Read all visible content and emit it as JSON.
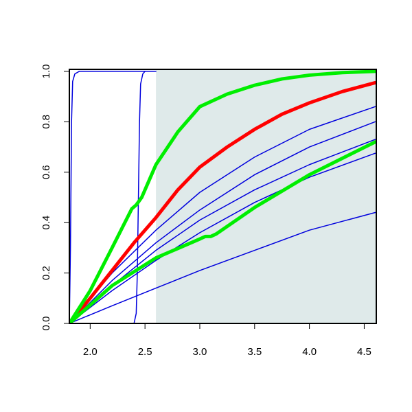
{
  "chart_data": {
    "type": "line",
    "xlim": [
      1.81,
      4.61
    ],
    "ylim": [
      0,
      1.008
    ],
    "xticks": [
      {
        "value": 2,
        "label": "2.0"
      },
      2.5,
      {
        "value": 3,
        "label": "3.0"
      },
      3.5,
      {
        "value": 4,
        "label": "4.0"
      },
      4.5
    ],
    "yticks": [
      {
        "value": 0,
        "label": "0.0"
      },
      0.2,
      0.4,
      0.6,
      0.8,
      {
        "value": 1,
        "label": "1.0"
      }
    ],
    "shaded_region": {
      "x": [
        2.6,
        4.61
      ],
      "color": "#dfeaea"
    },
    "series": [
      {
        "color": "#0000dd",
        "line_width": 1.5,
        "x": [
          1.81,
          1.82,
          1.83,
          1.84,
          1.86,
          1.9,
          2.6
        ],
        "values": [
          0,
          0.3,
          0.8,
          0.96,
          0.99,
          1.0,
          1.0
        ]
      },
      {
        "color": "#0000dd",
        "line_width": 1.5,
        "x": [
          1.81,
          2.4,
          2.42,
          2.43,
          2.44,
          2.45,
          2.46,
          2.48,
          2.5
        ],
        "values": [
          0,
          0,
          0.04,
          0.2,
          0.5,
          0.8,
          0.95,
          0.99,
          1.0
        ]
      },
      {
        "color": "#0000dd",
        "line_width": 1.5,
        "x": [
          1.81,
          2.2,
          2.6,
          3.0,
          3.5,
          4.0,
          4.6
        ],
        "values": [
          0,
          0.2,
          0.37,
          0.52,
          0.66,
          0.77,
          0.86
        ]
      },
      {
        "color": "#0000dd",
        "line_width": 1.5,
        "x": [
          1.81,
          2.2,
          2.6,
          3.0,
          3.5,
          4.0,
          4.6
        ],
        "values": [
          0,
          0.17,
          0.32,
          0.45,
          0.59,
          0.7,
          0.8
        ]
      },
      {
        "color": "#0000dd",
        "line_width": 1.5,
        "x": [
          1.81,
          2.2,
          2.6,
          3.0,
          3.5,
          4.0,
          4.6
        ],
        "values": [
          0,
          0.15,
          0.29,
          0.41,
          0.53,
          0.63,
          0.73
        ]
      },
      {
        "color": "#0000dd",
        "line_width": 1.5,
        "x": [
          1.81,
          2.2,
          2.6,
          3.0,
          3.5,
          4.0,
          4.6
        ],
        "values": [
          0,
          0.13,
          0.25,
          0.36,
          0.48,
          0.58,
          0.675
        ]
      },
      {
        "color": "#0000dd",
        "line_width": 1.5,
        "x": [
          1.81,
          2.2,
          2.6,
          3.0,
          3.5,
          4.0,
          4.6
        ],
        "values": [
          0,
          0.07,
          0.14,
          0.21,
          0.29,
          0.37,
          0.44
        ]
      },
      {
        "color": "#ff0000",
        "line_width": 5,
        "x": [
          1.81,
          2.0,
          2.2,
          2.4,
          2.6,
          2.8,
          3.0,
          3.25,
          3.5,
          3.75,
          4.0,
          4.3,
          4.6
        ],
        "values": [
          0,
          0.1,
          0.21,
          0.32,
          0.42,
          0.53,
          0.62,
          0.7,
          0.77,
          0.83,
          0.875,
          0.92,
          0.955
        ]
      },
      {
        "color": "#00ee00",
        "line_width": 5,
        "x": [
          1.81,
          2.0,
          2.2,
          2.38,
          2.42,
          2.47,
          2.6,
          2.8,
          3.0,
          3.25,
          3.5,
          3.75,
          4.0,
          4.3,
          4.6
        ],
        "values": [
          0,
          0.13,
          0.3,
          0.455,
          0.47,
          0.5,
          0.63,
          0.76,
          0.86,
          0.91,
          0.945,
          0.97,
          0.985,
          0.995,
          1.0
        ]
      },
      {
        "color": "#00ee00",
        "line_width": 5,
        "x": [
          1.81,
          2.2,
          2.6,
          3.0,
          3.05,
          3.1,
          3.15,
          3.5,
          4.0,
          4.6
        ],
        "values": [
          0,
          0.15,
          0.26,
          0.335,
          0.345,
          0.345,
          0.355,
          0.46,
          0.59,
          0.72
        ]
      }
    ]
  }
}
